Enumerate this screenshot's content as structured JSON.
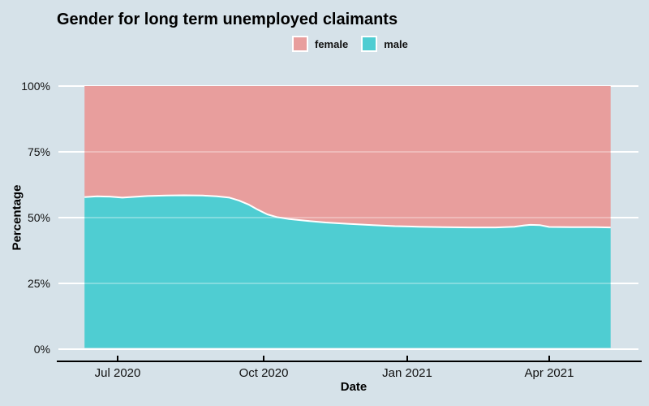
{
  "title": "Gender for long term unemployed claimants",
  "legend": {
    "position": "top-center",
    "items": [
      {
        "label": "female",
        "color": "#e89e9d"
      },
      {
        "label": "male",
        "color": "#4fcdd2"
      }
    ]
  },
  "axes": {
    "x": {
      "title": "Date",
      "ticks": [
        {
          "label": "Jul 2020",
          "date": "2020-07-01"
        },
        {
          "label": "Oct 2020",
          "date": "2020-10-01"
        },
        {
          "label": "Jan 2021",
          "date": "2021-01-01"
        },
        {
          "label": "Apr 2021",
          "date": "2021-04-01"
        }
      ]
    },
    "y": {
      "title": "Percentage",
      "ticks": [
        {
          "label": "0%",
          "value": 0
        },
        {
          "label": "25%",
          "value": 25
        },
        {
          "label": "50%",
          "value": 50
        },
        {
          "label": "75%",
          "value": 75
        },
        {
          "label": "100%",
          "value": 100
        }
      ]
    }
  },
  "colors": {
    "background": "#d6e2e9",
    "female": "#e89e9d",
    "male": "#4fcdd2",
    "gridline": "#ffffff",
    "boundary_line": "#ffffff",
    "axis": "#000000"
  },
  "chart_data": {
    "type": "area",
    "stacked": true,
    "percent_stacked": true,
    "title": "Gender for long term unemployed claimants",
    "xlabel": "Date",
    "ylabel": "Percentage",
    "ylim": [
      0,
      100
    ],
    "grid": true,
    "legend_position": "top-center",
    "x_range": [
      "2020-06-10",
      "2021-05-10"
    ],
    "x": [
      "2020-06-10",
      "2020-06-18",
      "2020-06-26",
      "2020-07-04",
      "2020-07-12",
      "2020-07-20",
      "2020-08-01",
      "2020-08-12",
      "2020-08-24",
      "2020-09-02",
      "2020-09-10",
      "2020-09-16",
      "2020-09-22",
      "2020-09-28",
      "2020-10-04",
      "2020-10-10",
      "2020-10-18",
      "2020-10-28",
      "2020-11-10",
      "2020-11-24",
      "2020-12-10",
      "2020-12-24",
      "2021-01-08",
      "2021-01-24",
      "2021-02-10",
      "2021-02-26",
      "2021-03-10",
      "2021-03-16",
      "2021-03-20",
      "2021-03-26",
      "2021-04-01",
      "2021-04-15",
      "2021-04-30",
      "2021-05-10"
    ],
    "series": [
      {
        "name": "male",
        "color": "#4fcdd2",
        "values": [
          57.6,
          57.9,
          57.8,
          57.4,
          57.7,
          58.0,
          58.2,
          58.3,
          58.2,
          57.9,
          57.4,
          56.3,
          54.8,
          52.8,
          51.0,
          50.0,
          49.2,
          48.6,
          47.9,
          47.4,
          46.9,
          46.5,
          46.3,
          46.1,
          46.0,
          46.0,
          46.3,
          46.8,
          47.0,
          46.9,
          46.2,
          46.1,
          46.1,
          46.0
        ]
      },
      {
        "name": "female",
        "color": "#e89e9d",
        "values": [
          42.4,
          42.1,
          42.2,
          42.6,
          42.3,
          42.0,
          41.8,
          41.7,
          41.8,
          42.1,
          42.6,
          43.7,
          45.2,
          47.2,
          49.0,
          50.0,
          50.8,
          51.4,
          52.1,
          52.6,
          53.1,
          53.5,
          53.7,
          53.9,
          54.0,
          54.0,
          53.7,
          53.2,
          53.0,
          53.1,
          53.8,
          53.9,
          53.9,
          54.0
        ]
      }
    ]
  }
}
